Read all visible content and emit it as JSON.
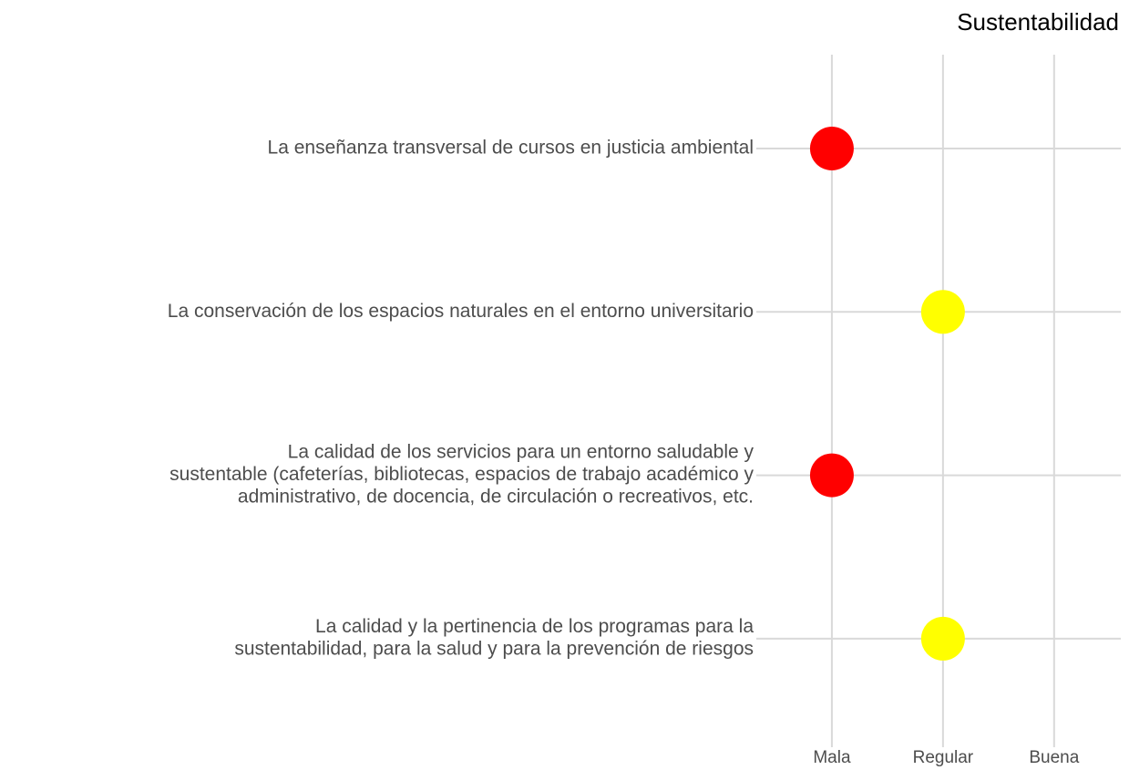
{
  "chart_data": {
    "type": "dot",
    "title": "Sustentabilidad",
    "categories": [
      [
        "La enseñanza transversal de cursos en justicia ambiental"
      ],
      [
        "La conservación de los espacios naturales en el entorno universitario"
      ],
      [
        "La calidad de los servicios para un entorno saludable y",
        "sustentable (cafeterías, bibliotecas, espacios de trabajo académico y",
        "administrativo, de docencia, de circulación o recreativos, etc."
      ],
      [
        "La calidad y la pertinencia de los programas para la",
        "sustentabilidad, para la salud y para la prevención de riesgos"
      ]
    ],
    "values": [
      1,
      2,
      1,
      2
    ],
    "colors": [
      "#ff0000",
      "#ffff00",
      "#ff0000",
      "#ffff00"
    ],
    "xlim": [
      0.32,
      3.6
    ],
    "xticks": [
      {
        "value": 1,
        "label": "Mala"
      },
      {
        "value": 2,
        "label": "Regular"
      },
      {
        "value": 3,
        "label": "Buena"
      }
    ],
    "grid": true
  }
}
